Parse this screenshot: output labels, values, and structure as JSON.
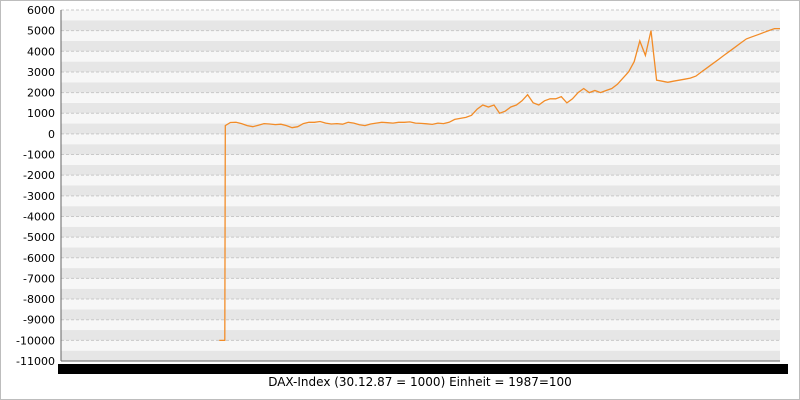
{
  "chart_data": {
    "type": "line",
    "title": "",
    "xlabel": "DAX-Index  (30.12.87 = 1000) Einheit = 1987=100",
    "ylabel": "",
    "ylim": [
      -11000,
      6000
    ],
    "y_ticks": [
      6000,
      5000,
      4000,
      3000,
      2000,
      1000,
      0,
      -1000,
      -2000,
      -3000,
      -4000,
      -5000,
      -6000,
      -7000,
      -8000,
      -9000,
      -10000,
      -11000
    ],
    "x_ticks_legible": false,
    "grid": "horizontal-bands",
    "legend": "none",
    "series": [
      {
        "color": "#f28c28",
        "x": [
          0.0,
          0.01,
          0.011,
          0.02,
          0.03,
          0.04,
          0.05,
          0.06,
          0.07,
          0.08,
          0.09,
          0.1,
          0.11,
          0.12,
          0.13,
          0.14,
          0.15,
          0.16,
          0.17,
          0.18,
          0.19,
          0.2,
          0.21,
          0.22,
          0.23,
          0.24,
          0.25,
          0.26,
          0.27,
          0.28,
          0.29,
          0.3,
          0.31,
          0.32,
          0.33,
          0.34,
          0.35,
          0.36,
          0.37,
          0.38,
          0.39,
          0.4,
          0.41,
          0.42,
          0.43,
          0.44,
          0.45,
          0.46,
          0.47,
          0.48,
          0.49,
          0.5,
          0.51,
          0.52,
          0.53,
          0.54,
          0.55,
          0.56,
          0.57,
          0.58,
          0.59,
          0.6,
          0.61,
          0.62,
          0.63,
          0.64,
          0.65,
          0.66,
          0.67,
          0.68,
          0.69,
          0.7,
          0.71,
          0.72,
          0.73,
          0.74,
          0.75,
          0.76,
          0.77,
          0.78,
          0.79,
          0.8,
          0.81,
          0.82,
          0.83,
          0.84,
          0.85,
          0.86,
          0.87,
          0.88,
          0.89,
          0.9,
          0.91,
          0.92,
          0.93,
          0.94,
          0.95,
          0.96,
          0.97,
          0.98,
          0.99,
          1.0
        ],
        "y": [
          -10000,
          -10000,
          400,
          550,
          560,
          500,
          400,
          350,
          420,
          500,
          480,
          450,
          470,
          400,
          300,
          350,
          500,
          560,
          560,
          600,
          520,
          480,
          500,
          470,
          560,
          520,
          440,
          400,
          480,
          520,
          560,
          540,
          520,
          560,
          560,
          580,
          520,
          510,
          490,
          460,
          520,
          500,
          560,
          700,
          750,
          800,
          900,
          1200,
          1400,
          1300,
          1400,
          1000,
          1100,
          1300,
          1400,
          1600,
          1900,
          1500,
          1400,
          1600,
          1700,
          1700,
          1800,
          1500,
          1700,
          2000,
          2200,
          2000,
          2100,
          2000,
          2100,
          2200,
          2400,
          2700,
          3000,
          3500,
          4500,
          3800,
          5000,
          2600,
          2550,
          2500,
          2550,
          2600,
          2650,
          2700,
          2800,
          3000,
          3200,
          3400,
          3600,
          3800,
          4000,
          4200,
          4400,
          4600,
          4700,
          4800,
          4900,
          5000,
          5100,
          5100
        ]
      }
    ]
  }
}
